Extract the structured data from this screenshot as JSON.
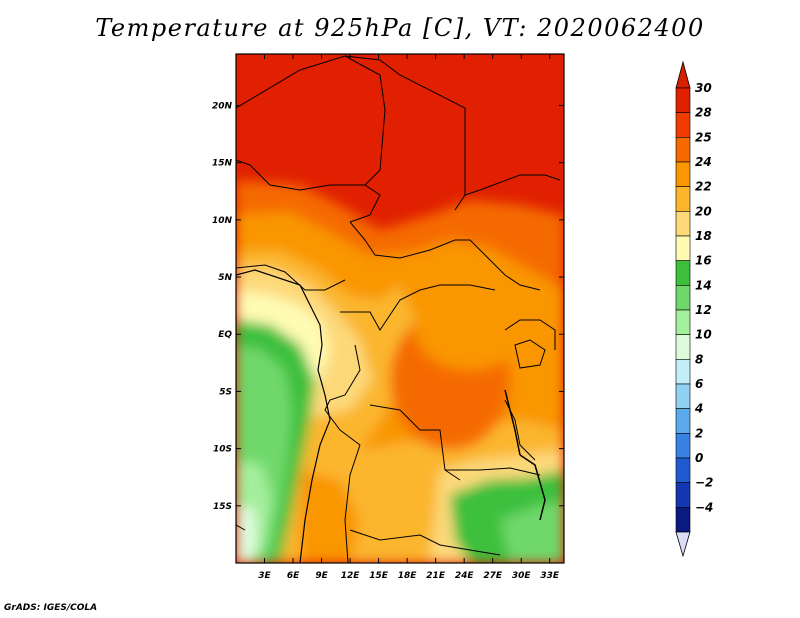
{
  "title": "Temperature at 925hPa [C], VT: 2020062400",
  "credit": "GrADS: IGES/COLA",
  "map": {
    "lon_range": [
      0,
      34.5
    ],
    "lat_range": [
      -20,
      24.5
    ],
    "lon_ticks": [
      {
        "value": 3,
        "label": "3E"
      },
      {
        "value": 6,
        "label": "6E"
      },
      {
        "value": 9,
        "label": "9E"
      },
      {
        "value": 12,
        "label": "12E"
      },
      {
        "value": 15,
        "label": "15E"
      },
      {
        "value": 18,
        "label": "18E"
      },
      {
        "value": 21,
        "label": "21E"
      },
      {
        "value": 24,
        "label": "24E"
      },
      {
        "value": 27,
        "label": "27E"
      },
      {
        "value": 30,
        "label": "30E"
      },
      {
        "value": 33,
        "label": "33E"
      }
    ],
    "lat_ticks": [
      {
        "value": 20,
        "label": "20N"
      },
      {
        "value": 15,
        "label": "15N"
      },
      {
        "value": 10,
        "label": "10N"
      },
      {
        "value": 5,
        "label": "5N"
      },
      {
        "value": 0,
        "label": "EQ"
      },
      {
        "value": -5,
        "label": "5S"
      },
      {
        "value": -10,
        "label": "10S"
      },
      {
        "value": -15,
        "label": "15S"
      }
    ]
  },
  "colorbar": {
    "levels": [
      {
        "label": "30",
        "color": "#e02000"
      },
      {
        "label": "28",
        "color": "#f03c00"
      },
      {
        "label": "25",
        "color": "#f56a00"
      },
      {
        "label": "24",
        "color": "#f99600"
      },
      {
        "label": "22",
        "color": "#fbb62e"
      },
      {
        "label": "20",
        "color": "#fdd97a"
      },
      {
        "label": "18",
        "color": "#fffbb4"
      },
      {
        "label": "16",
        "color": "#3cc03c"
      },
      {
        "label": "14",
        "color": "#6fd86a"
      },
      {
        "label": "12",
        "color": "#a4ef9c"
      },
      {
        "label": "10",
        "color": "#ddfbdb"
      },
      {
        "label": "8",
        "color": "#c2eefa"
      },
      {
        "label": "6",
        "color": "#8fd0f3"
      },
      {
        "label": "4",
        "color": "#5aaaec"
      },
      {
        "label": "2",
        "color": "#3782e2"
      },
      {
        "label": "0",
        "color": "#1f5bd0"
      },
      {
        "label": "−2",
        "color": "#1436b0"
      },
      {
        "label": "−4",
        "color": "#0b1a80"
      }
    ],
    "over_color": "#d62000",
    "under_color": "#dcdcf5"
  }
}
